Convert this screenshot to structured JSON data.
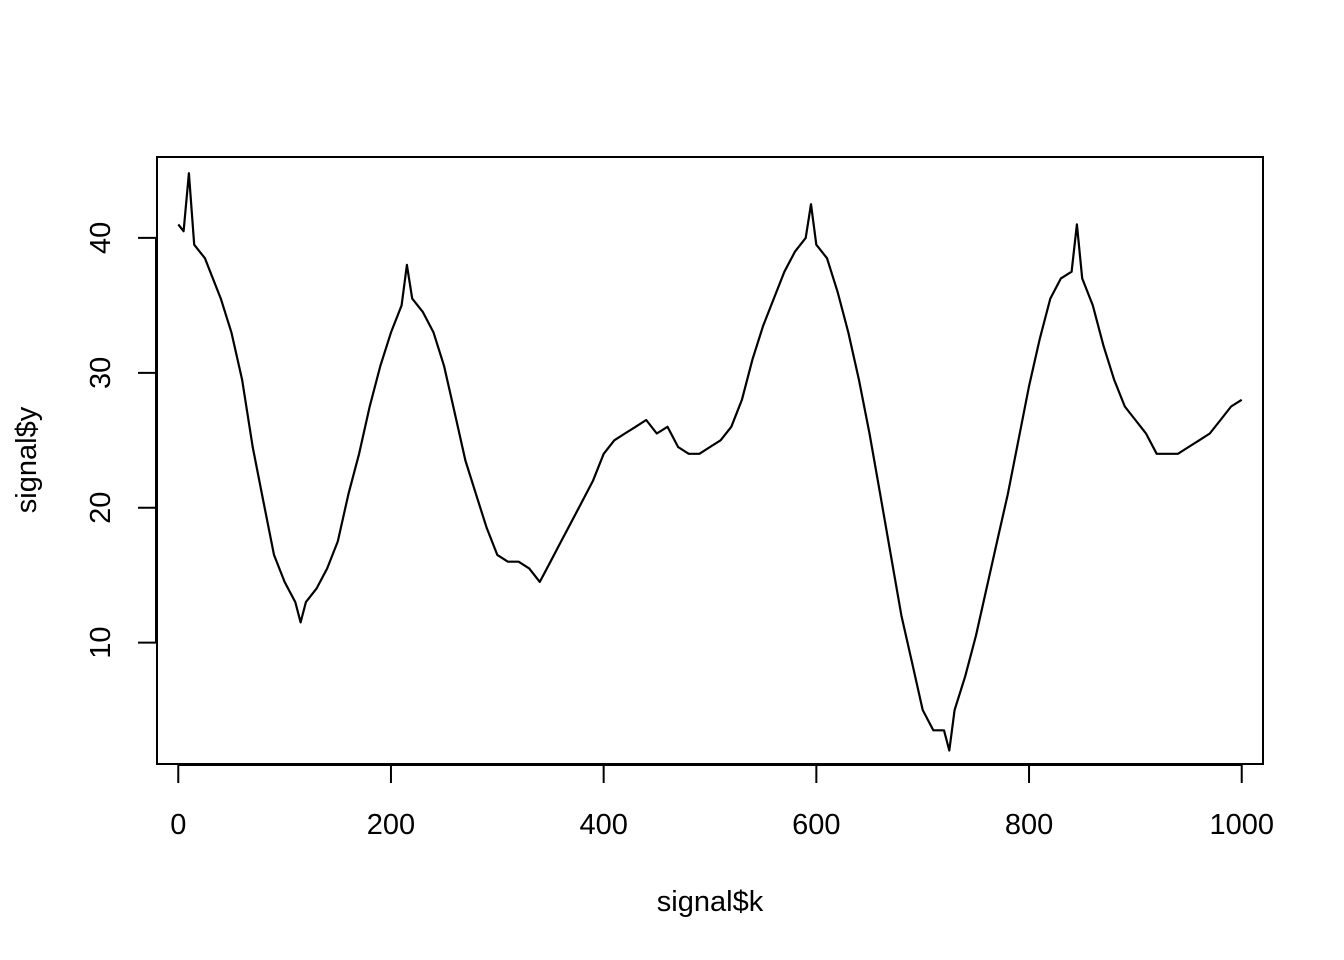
{
  "chart_data": {
    "type": "line",
    "title": "",
    "xlabel": "signal$k",
    "ylabel": "signal$y",
    "xlim": [
      -20,
      1020
    ],
    "ylim": [
      1,
      46
    ],
    "xticks": [
      0,
      200,
      400,
      600,
      800,
      1000
    ],
    "xtick_labels": [
      "0",
      "200",
      "400",
      "600",
      "800",
      "1000"
    ],
    "yticks": [
      10,
      20,
      30,
      40
    ],
    "ytick_labels": [
      "10",
      "20",
      "30",
      "40"
    ],
    "grid": false,
    "legend": "none",
    "line_color": "#000000",
    "series": [
      {
        "x": [
          0,
          5,
          10,
          15,
          20,
          25,
          30,
          40,
          50,
          60,
          70,
          80,
          90,
          100,
          110,
          115,
          120,
          130,
          140,
          150,
          160,
          170,
          180,
          190,
          200,
          210,
          215,
          220,
          230,
          240,
          250,
          260,
          270,
          280,
          290,
          300,
          310,
          320,
          330,
          340,
          350,
          360,
          370,
          380,
          390,
          400,
          410,
          420,
          430,
          440,
          450,
          460,
          470,
          480,
          490,
          500,
          510,
          520,
          530,
          540,
          550,
          560,
          570,
          580,
          590,
          595,
          600,
          610,
          620,
          630,
          640,
          650,
          660,
          670,
          680,
          690,
          700,
          710,
          720,
          725,
          730,
          740,
          750,
          760,
          770,
          780,
          790,
          800,
          810,
          820,
          830,
          840,
          845,
          850,
          860,
          870,
          880,
          890,
          900,
          910,
          920,
          930,
          940,
          950,
          960,
          970,
          980,
          990,
          1000
        ],
        "y": [
          41,
          40.5,
          44.8,
          39.5,
          39,
          38.5,
          37.5,
          35.5,
          33,
          29.5,
          24.5,
          20.5,
          16.5,
          14.5,
          13,
          11.5,
          13,
          14,
          15.5,
          17.5,
          21,
          24,
          27.5,
          30.5,
          33,
          35,
          38,
          35.5,
          34.5,
          33,
          30.5,
          27,
          23.5,
          21,
          18.5,
          16.5,
          16,
          16,
          15.5,
          14.5,
          16,
          17.5,
          19,
          20.5,
          22,
          24,
          25,
          25.5,
          26,
          26.5,
          25.5,
          26,
          24.5,
          24,
          24,
          24.5,
          25,
          26,
          28,
          31,
          33.5,
          35.5,
          37.5,
          39,
          40,
          42.5,
          39.5,
          38.5,
          36,
          33,
          29.5,
          25.5,
          21,
          16.5,
          12,
          8.5,
          5,
          3.5,
          3.5,
          2,
          5,
          7.5,
          10.5,
          14,
          17.5,
          21,
          25,
          29,
          32.5,
          35.5,
          37,
          37.5,
          41,
          37,
          35,
          32,
          29.5,
          27.5,
          26.5,
          25.5,
          24,
          24,
          24,
          24.5,
          25,
          25.5,
          26.5,
          27.5,
          28
        ]
      }
    ]
  }
}
